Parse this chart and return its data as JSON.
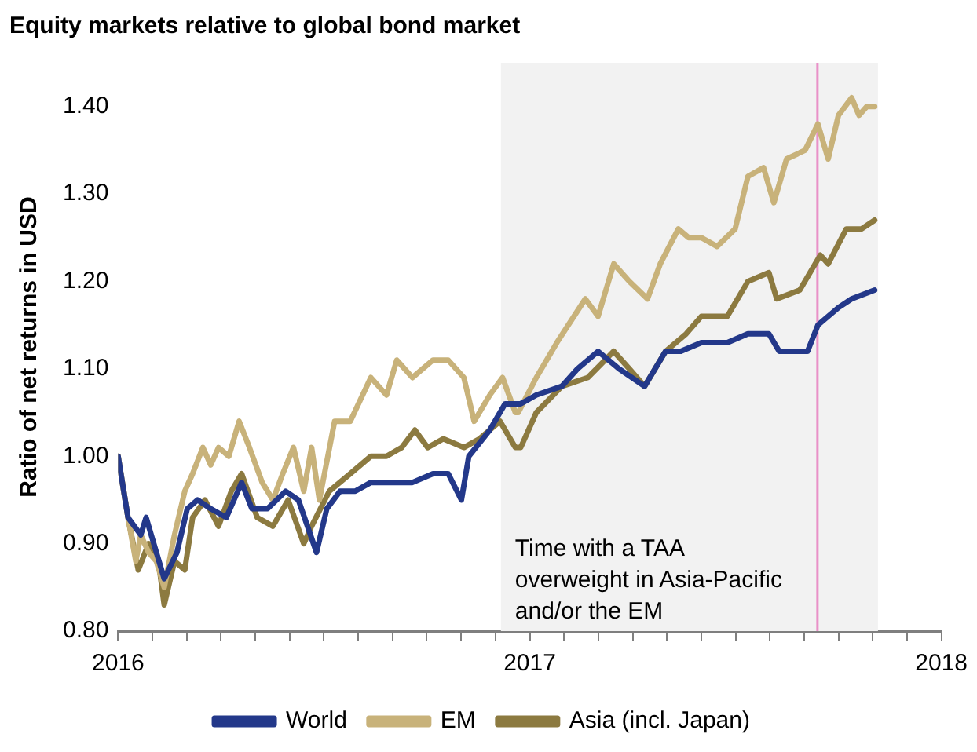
{
  "chart_data": {
    "type": "line",
    "title": "Equity markets relative to global bond market",
    "ylabel": "Ratio of net returns in USD",
    "xlim": [
      2016,
      2018
    ],
    "xticks": [
      2016,
      {
        "value": 2016.083,
        "label": null
      },
      {
        "value": 2016.167,
        "label": null
      },
      {
        "value": 2016.25,
        "label": null
      },
      {
        "value": 2016.333,
        "label": null
      },
      {
        "value": 2016.417,
        "label": null
      },
      {
        "value": 2016.5,
        "label": null
      },
      {
        "value": 2016.583,
        "label": null
      },
      {
        "value": 2016.667,
        "label": null
      },
      {
        "value": 2016.75,
        "label": null
      },
      {
        "value": 2016.833,
        "label": null
      },
      {
        "value": 2016.917,
        "label": null
      },
      2017,
      {
        "value": 2017.083,
        "label": null
      },
      {
        "value": 2017.167,
        "label": null
      },
      {
        "value": 2017.25,
        "label": null
      },
      {
        "value": 2017.333,
        "label": null
      },
      {
        "value": 2017.417,
        "label": null
      },
      {
        "value": 2017.5,
        "label": null
      },
      {
        "value": 2017.583,
        "label": null
      },
      {
        "value": 2017.667,
        "label": null
      },
      {
        "value": 2017.75,
        "label": null
      },
      {
        "value": 2017.833,
        "label": null
      },
      {
        "value": 2017.917,
        "label": null
      },
      2018
    ],
    "ylim": [
      0.8,
      1.45
    ],
    "yticks": [
      {
        "value": 0.8,
        "label": "0.80"
      },
      {
        "value": 0.9,
        "label": "0.90"
      },
      {
        "value": 1.0,
        "label": "1.00"
      },
      {
        "value": 1.1,
        "label": "1.10"
      },
      {
        "value": 1.2,
        "label": "1.20"
      },
      {
        "value": 1.3,
        "label": "1.30"
      },
      {
        "value": 1.4,
        "label": "1.40"
      }
    ],
    "grid": false,
    "legend": "bottom",
    "marker": "none",
    "line_style": "solid",
    "bands": [
      {
        "axis": "x",
        "from": 2016.93,
        "to": 2017.846,
        "label": "Time with a TAA overweight in Asia-Pacific and/or the EM",
        "color": "#f2f2f2"
      }
    ],
    "ref_lines": [
      {
        "axis": "x",
        "value": 2017.699,
        "color": "#e991c8"
      }
    ],
    "series": [
      {
        "name": "World",
        "color": "#23388a",
        "x": [
          2016.0,
          2016.024,
          2016.055,
          2016.068,
          2016.093,
          2016.112,
          2016.143,
          2016.168,
          2016.193,
          2016.225,
          2016.263,
          2016.3,
          2016.325,
          2016.363,
          2016.407,
          2016.438,
          2016.482,
          2016.507,
          2016.539,
          2016.576,
          2016.614,
          2016.664,
          2016.715,
          2016.765,
          2016.802,
          2016.834,
          2016.852,
          2016.903,
          2016.94,
          2016.978,
          2017.016,
          2017.078,
          2017.116,
          2017.166,
          2017.217,
          2017.279,
          2017.33,
          2017.367,
          2017.417,
          2017.48,
          2017.53,
          2017.581,
          2017.606,
          2017.643,
          2017.675,
          2017.7,
          2017.75,
          2017.782,
          2017.838
        ],
        "values": [
          1.0,
          0.93,
          0.91,
          0.93,
          0.89,
          0.86,
          0.89,
          0.94,
          0.95,
          0.94,
          0.93,
          0.97,
          0.94,
          0.94,
          0.96,
          0.95,
          0.89,
          0.94,
          0.96,
          0.96,
          0.97,
          0.97,
          0.97,
          0.98,
          0.98,
          0.95,
          1.0,
          1.03,
          1.06,
          1.06,
          1.07,
          1.08,
          1.1,
          1.12,
          1.1,
          1.08,
          1.12,
          1.12,
          1.13,
          1.13,
          1.14,
          1.14,
          1.12,
          1.12,
          1.12,
          1.15,
          1.17,
          1.18,
          1.19
        ]
      },
      {
        "name": "EM",
        "color": "#c8b27a",
        "x": [
          2016.0,
          2016.024,
          2016.043,
          2016.055,
          2016.074,
          2016.093,
          2016.112,
          2016.137,
          2016.162,
          2016.181,
          2016.206,
          2016.225,
          2016.244,
          2016.269,
          2016.294,
          2016.319,
          2016.35,
          2016.376,
          2016.4,
          2016.426,
          2016.451,
          2016.47,
          2016.489,
          2016.526,
          2016.564,
          2016.614,
          2016.652,
          2016.677,
          2016.715,
          2016.765,
          2016.802,
          2016.84,
          2016.865,
          2016.903,
          2016.934,
          2016.965,
          2016.972,
          2017.016,
          2017.066,
          2017.135,
          2017.166,
          2017.204,
          2017.242,
          2017.286,
          2017.317,
          2017.361,
          2017.386,
          2017.417,
          2017.455,
          2017.499,
          2017.53,
          2017.568,
          2017.593,
          2017.624,
          2017.669,
          2017.7,
          2017.725,
          2017.75,
          2017.782,
          2017.8,
          2017.819,
          2017.838
        ],
        "values": [
          1.0,
          0.93,
          0.88,
          0.91,
          0.89,
          0.88,
          0.85,
          0.91,
          0.96,
          0.98,
          1.01,
          0.99,
          1.01,
          1.0,
          1.04,
          1.01,
          0.97,
          0.95,
          0.98,
          1.01,
          0.96,
          1.01,
          0.95,
          1.04,
          1.04,
          1.09,
          1.07,
          1.11,
          1.09,
          1.11,
          1.11,
          1.09,
          1.04,
          1.07,
          1.09,
          1.05,
          1.05,
          1.09,
          1.13,
          1.18,
          1.16,
          1.22,
          1.2,
          1.18,
          1.22,
          1.26,
          1.25,
          1.25,
          1.24,
          1.26,
          1.32,
          1.33,
          1.29,
          1.34,
          1.35,
          1.38,
          1.34,
          1.39,
          1.41,
          1.39,
          1.4,
          1.4
        ]
      },
      {
        "name": "Asia (incl. Japan)",
        "color": "#8c7a40",
        "x": [
          2016.0,
          2016.024,
          2016.049,
          2016.074,
          2016.098,
          2016.112,
          2016.137,
          2016.162,
          2016.181,
          2016.211,
          2016.244,
          2016.275,
          2016.3,
          2016.338,
          2016.376,
          2016.413,
          2016.451,
          2016.47,
          2016.513,
          2016.564,
          2016.614,
          2016.652,
          2016.689,
          2016.721,
          2016.752,
          2016.79,
          2016.84,
          2016.878,
          2016.928,
          2016.965,
          2016.978,
          2017.016,
          2017.078,
          2017.141,
          2017.204,
          2017.242,
          2017.279,
          2017.33,
          2017.38,
          2017.417,
          2017.48,
          2017.53,
          2017.581,
          2017.6,
          2017.656,
          2017.681,
          2017.706,
          2017.725,
          2017.769,
          2017.806,
          2017.838
        ],
        "values": [
          1.0,
          0.93,
          0.87,
          0.9,
          0.88,
          0.83,
          0.88,
          0.87,
          0.93,
          0.95,
          0.92,
          0.96,
          0.98,
          0.93,
          0.92,
          0.95,
          0.9,
          0.92,
          0.96,
          0.98,
          1.0,
          1.0,
          1.01,
          1.03,
          1.01,
          1.02,
          1.01,
          1.02,
          1.04,
          1.01,
          1.01,
          1.05,
          1.08,
          1.09,
          1.12,
          1.1,
          1.08,
          1.12,
          1.14,
          1.16,
          1.16,
          1.2,
          1.21,
          1.18,
          1.19,
          1.21,
          1.23,
          1.22,
          1.26,
          1.26,
          1.27
        ]
      }
    ]
  }
}
